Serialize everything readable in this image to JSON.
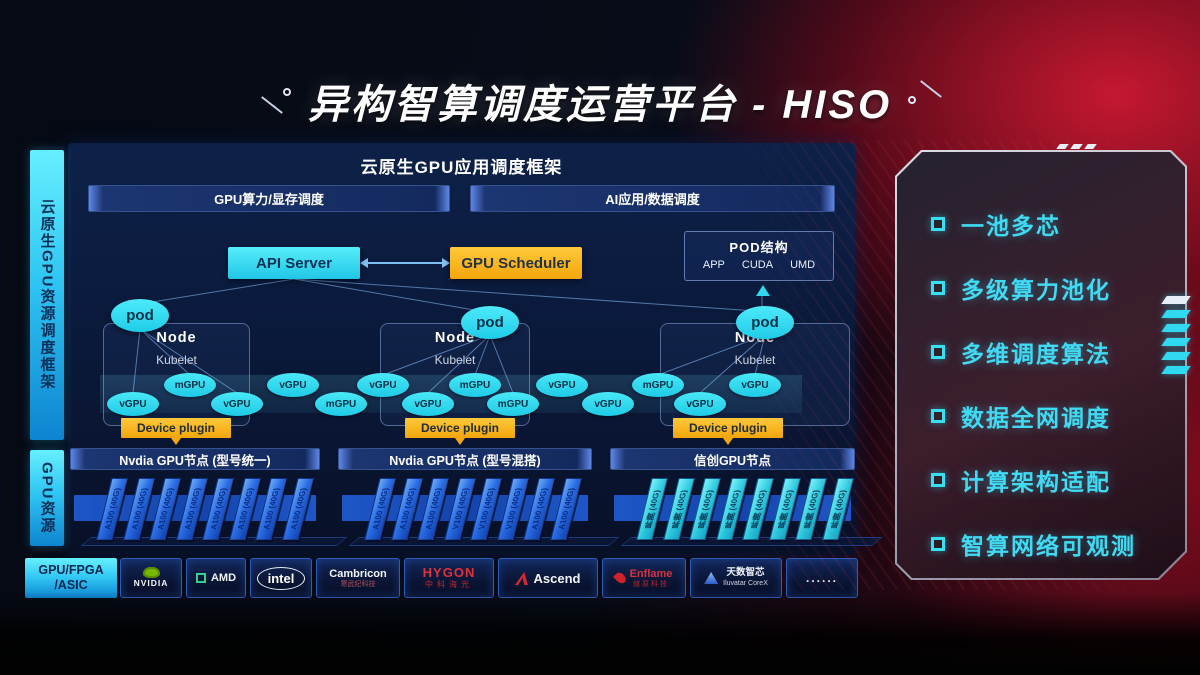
{
  "title": {
    "text": "异构智算调度运营平台 - HISO"
  },
  "left_rails": {
    "scheduling_framework": "云原生GPU资源调度框架",
    "gpu_resources": "GPU资源",
    "chip_types_line1": "GPU/FPGA",
    "chip_types_line2": "/ASIC"
  },
  "framework": {
    "header": "云原生GPU应用调度框架",
    "lanes": [
      {
        "label": "GPU算力/显存调度"
      },
      {
        "label": "AI应用/数据调度"
      }
    ],
    "api_server": "API Server",
    "gpu_scheduler": "GPU Scheduler",
    "pod_structure": {
      "title": "POD结构",
      "items": [
        "APP",
        "CUDA",
        "UMD"
      ]
    },
    "pod_label": "pod",
    "nodes": [
      {
        "name": "Node",
        "agent": "Kubelet"
      },
      {
        "name": "Node",
        "agent": "Kubelet"
      },
      {
        "name": "Node",
        "agent": "Kubelet"
      }
    ],
    "device_plugin_label": "Device plugin",
    "gpu_ovals": [
      "vGPU",
      "mGPU",
      "vGPU",
      "vGPU",
      "mGPU",
      "vGPU",
      "vGPU",
      "mGPU",
      "mGPU",
      "vGPU",
      "vGPU",
      "mGPU",
      "vGPU",
      "vGPU"
    ]
  },
  "gpu_node_groups": [
    {
      "title": "Nvdia GPU节点 (型号统一)",
      "style": "blue",
      "cards": [
        "A100 (40G)",
        "A100 (40G)",
        "A100 (40G)",
        "A100 (40G)",
        "A100 (40G)",
        "A100 (40G)",
        "A100 (40G)",
        "A100 (40G)"
      ]
    },
    {
      "title": "Nvdia GPU节点 (型号混搭)",
      "style": "blue",
      "cards": [
        "A100 (40G)",
        "A100 (40G)",
        "A100 (40G)",
        "V100 (40G)",
        "V100 (40G)",
        "V100 (40G)",
        "A100 (40G)",
        "A100 (40G)"
      ]
    },
    {
      "title": "信创GPU节点",
      "style": "cyan",
      "cards": [
        "昇腾 (40G)",
        "昇腾 (40G)",
        "昇腾 (40G)",
        "昇腾 (40G)",
        "昇腾 (40G)",
        "昇腾 (40G)",
        "昇腾 (40G)",
        "昇腾 (40G)"
      ]
    }
  ],
  "vendors": [
    {
      "name": "NVIDIA",
      "icon": "nvidia-logo"
    },
    {
      "name": "AMD",
      "icon": "amd-logo"
    },
    {
      "name": "intel",
      "icon": "intel-logo"
    },
    {
      "name": "Cambricon",
      "sub": "寒武纪科技",
      "icon": "cambricon-logo"
    },
    {
      "name": "HYGON",
      "sub": "中科海光",
      "icon": "hygon-logo"
    },
    {
      "name": "Ascend",
      "icon": "ascend-logo"
    },
    {
      "name": "Enflame",
      "sub": "燧原科技",
      "icon": "enflame-logo"
    },
    {
      "name": "天数智芯",
      "sub": "Iluvatar CoreX",
      "icon": "iluvatar-logo"
    },
    {
      "name": "......",
      "icon": "more-dots"
    }
  ],
  "features": [
    "一池多芯",
    "多级算力池化",
    "多维调度算法",
    "数据全网调度",
    "计算架构适配",
    "智算网络可观测"
  ],
  "colors": {
    "accent_cyan": "#36e2f4",
    "accent_orange": "#ffb81a",
    "card_blue": "#2f7ae8",
    "panel_navy": "#0a1838",
    "red_background": "#8e0f26"
  }
}
